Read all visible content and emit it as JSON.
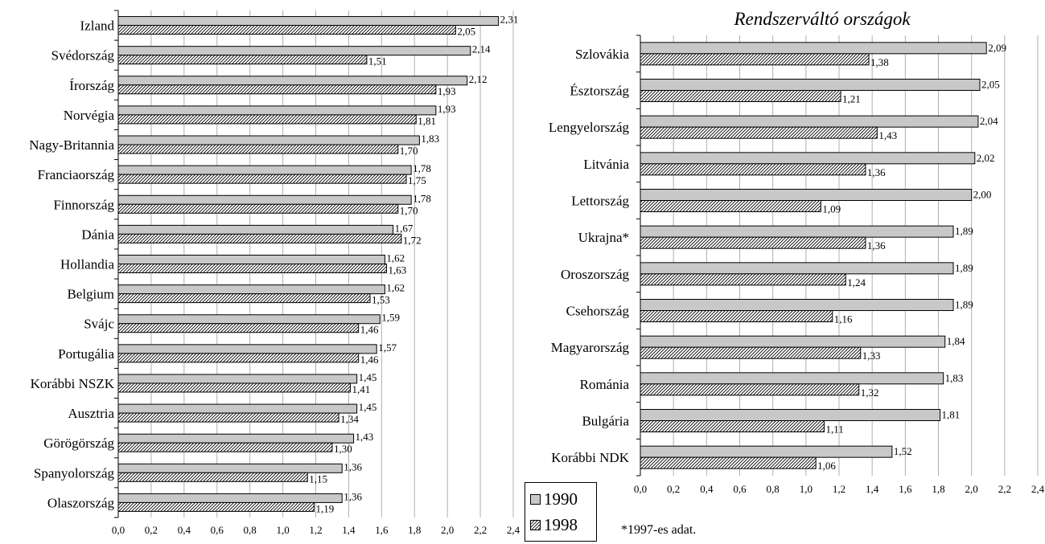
{
  "chart_data": [
    {
      "type": "bar",
      "title": "",
      "orientation": "horizontal",
      "categories": [
        "Izland",
        "Svédország",
        "Írország",
        "Norvégia",
        "Nagy-Britannia",
        "Franciaország",
        "Finnország",
        "Dánia",
        "Hollandia",
        "Belgium",
        "Svájc",
        "Portugália",
        "Korábbi NSZK",
        "Ausztria",
        "Görögörszág",
        "Spanyolország",
        "Olaszország"
      ],
      "series": [
        {
          "name": "1990",
          "values": [
            2.31,
            2.14,
            2.12,
            1.93,
            1.83,
            1.78,
            1.78,
            1.67,
            1.62,
            1.62,
            1.59,
            1.57,
            1.45,
            1.45,
            1.43,
            1.36,
            1.36
          ],
          "labels": [
            "2,31",
            "2,14",
            "2,12",
            "1,93",
            "1,83",
            "1,78",
            "1,78",
            "1,67",
            "1,62",
            "1,62",
            "1,59",
            "1,57",
            "1,45",
            "1,45",
            "1,43",
            "1,36",
            "1,36"
          ]
        },
        {
          "name": "1998",
          "values": [
            2.05,
            1.51,
            1.93,
            1.81,
            1.7,
            1.75,
            1.7,
            1.72,
            1.63,
            1.53,
            1.46,
            1.46,
            1.41,
            1.34,
            1.3,
            1.15,
            1.19
          ],
          "labels": [
            "2,05",
            "1,51",
            "1,93",
            "1,81",
            "1,70",
            "1,75",
            "1,70",
            "1,72",
            "1,63",
            "1,53",
            "1,46",
            "1,46",
            "1,41",
            "1,34",
            "1,30",
            "1,15",
            "1,19"
          ]
        }
      ],
      "xlim": [
        0,
        2.4
      ],
      "ticks": [
        "0,0",
        "0,2",
        "0,4",
        "0,6",
        "0,8",
        "1,0",
        "1,2",
        "1,4",
        "1,6",
        "1,8",
        "2,0",
        "2,2",
        "2,4"
      ],
      "grid": true
    },
    {
      "type": "bar",
      "title": "Rendszerváltó országok",
      "orientation": "horizontal",
      "categories": [
        "Szlovákia",
        "Észtország",
        "Lengyelország",
        "Litvánia",
        "Lettország",
        "Ukrajna*",
        "Oroszország",
        "Csehország",
        "Magyarország",
        "Románia",
        "Bulgária",
        "Korábbi NDK"
      ],
      "series": [
        {
          "name": "1990",
          "values": [
            2.09,
            2.05,
            2.04,
            2.02,
            2.0,
            1.89,
            1.89,
            1.89,
            1.84,
            1.83,
            1.81,
            1.52
          ],
          "labels": [
            "2,09",
            "2,05",
            "2,04",
            "2,02",
            "2,00",
            "1,89",
            "1,89",
            "1,89",
            "1,84",
            "1,83",
            "1,81",
            "1,52"
          ]
        },
        {
          "name": "1998",
          "values": [
            1.38,
            1.21,
            1.43,
            1.36,
            1.09,
            1.36,
            1.24,
            1.16,
            1.33,
            1.32,
            1.11,
            1.06
          ],
          "labels": [
            "1,38",
            "1,21",
            "1,43",
            "1,36",
            "1,09",
            "1,36",
            "1,24",
            "1,16",
            "1,33",
            "1,32",
            "1,11",
            "1,06"
          ]
        }
      ],
      "xlim": [
        0,
        2.4
      ],
      "ticks": [
        "0,0",
        "0,2",
        "0,4",
        "0,6",
        "0,8",
        "1,0",
        "1,2",
        "1,4",
        "1,6",
        "1,8",
        "2,0",
        "2,2",
        "2,4"
      ],
      "grid": true
    }
  ],
  "legend": {
    "items": [
      {
        "label": "1990",
        "pattern": "solid-gray"
      },
      {
        "label": "1998",
        "pattern": "diagonal-hatch"
      }
    ]
  },
  "footnote": "*1997-es adat.",
  "colors": {
    "bar_1990": "#c8c8c8",
    "hatch": "#000000",
    "grid": "#b0b0b0"
  }
}
